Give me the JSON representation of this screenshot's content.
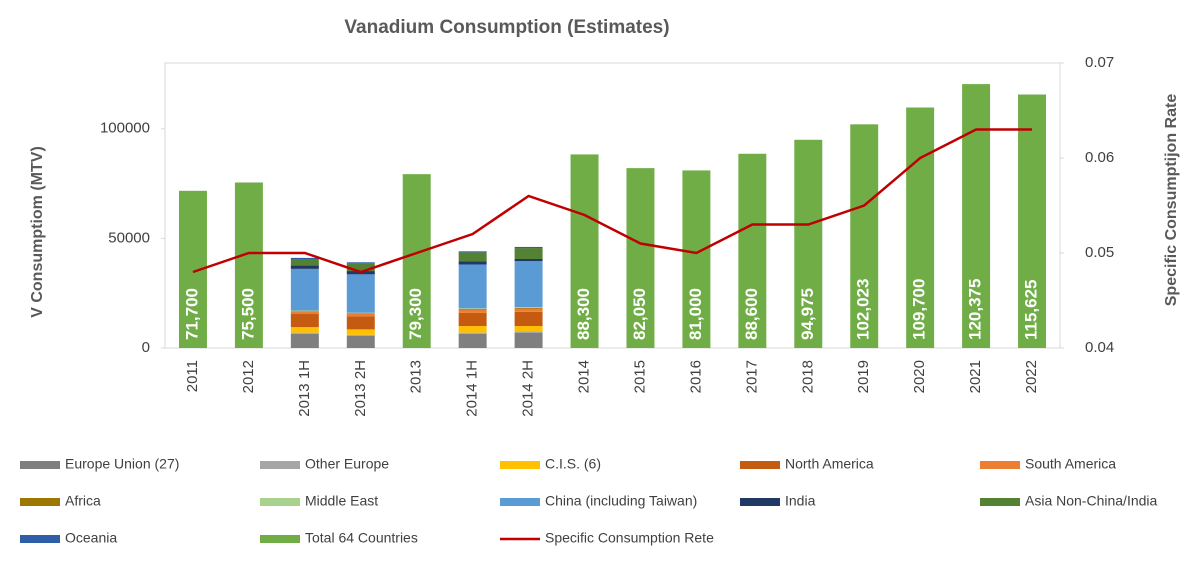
{
  "chart_data": {
    "type": "bar",
    "title": "Vanadium Consumption (Estimates)",
    "y_label": "V Consumptiom (MTV)",
    "y2_label": "Specific Consumptijon Rate",
    "categories": [
      "2011",
      "2012",
      "2013 1H",
      "2013 2H",
      "2013",
      "2014 1H",
      "2014 2H",
      "2014",
      "2015",
      "2016",
      "2017",
      "2018",
      "2019",
      "2020",
      "2021",
      "2022"
    ],
    "ylim": [
      0,
      130000
    ],
    "yticks": [
      0,
      50000,
      100000
    ],
    "y2lim": [
      0.04,
      0.07
    ],
    "y2ticks": [
      0.04,
      0.05,
      0.06,
      0.07
    ],
    "stacked": true,
    "series": [
      {
        "name": "Europe Union (27)",
        "color": "#7f7f7f",
        "values": [
          null,
          null,
          6500,
          5500,
          null,
          6500,
          7000,
          null,
          null,
          null,
          null,
          null,
          null,
          null,
          null,
          null
        ]
      },
      {
        "name": "Other Europe",
        "color": "#a5a5a5",
        "values": [
          null,
          null,
          500,
          500,
          null,
          500,
          500,
          null,
          null,
          null,
          null,
          null,
          null,
          null,
          null,
          null
        ]
      },
      {
        "name": "C.I.S. (6)",
        "color": "#ffc000",
        "values": [
          null,
          null,
          2500,
          2500,
          null,
          3000,
          2500,
          null,
          null,
          null,
          null,
          null,
          null,
          null,
          null,
          null
        ]
      },
      {
        "name": "North America",
        "color": "#c55a11",
        "values": [
          null,
          null,
          6000,
          6000,
          null,
          6000,
          6500,
          null,
          null,
          null,
          null,
          null,
          null,
          null,
          null,
          null
        ]
      },
      {
        "name": "South America",
        "color": "#ed7d31",
        "values": [
          null,
          null,
          1000,
          1000,
          null,
          1500,
          1500,
          null,
          null,
          null,
          null,
          null,
          null,
          null,
          null,
          null
        ]
      },
      {
        "name": "Africa",
        "color": "#9c7800",
        "values": [
          null,
          null,
          300,
          300,
          null,
          300,
          300,
          null,
          null,
          null,
          null,
          null,
          null,
          null,
          null,
          null
        ]
      },
      {
        "name": "Middle East",
        "color": "#a9d18e",
        "values": [
          null,
          null,
          300,
          300,
          null,
          300,
          300,
          null,
          null,
          null,
          null,
          null,
          null,
          null,
          null,
          null
        ]
      },
      {
        "name": "China (including Taiwan)",
        "color": "#5b9bd5",
        "values": [
          null,
          null,
          19000,
          17500,
          null,
          20000,
          21000,
          null,
          null,
          null,
          null,
          null,
          null,
          null,
          null,
          null
        ]
      },
      {
        "name": "India",
        "color": "#1f3864",
        "values": [
          null,
          null,
          1500,
          1500,
          null,
          1500,
          1000,
          null,
          null,
          null,
          null,
          null,
          null,
          null,
          null,
          null
        ]
      },
      {
        "name": "Asia Non-China/India",
        "color": "#548235",
        "values": [
          null,
          null,
          3000,
          3500,
          null,
          4000,
          5000,
          null,
          null,
          null,
          null,
          null,
          null,
          null,
          null,
          null
        ]
      },
      {
        "name": "Oceania",
        "color": "#2e5ea8",
        "values": [
          null,
          null,
          500,
          500,
          null,
          500,
          500,
          null,
          null,
          null,
          null,
          null,
          null,
          null,
          null,
          null
        ]
      },
      {
        "name": "Total 64 Countries",
        "color": "#70ad47",
        "values": [
          71700,
          75500,
          null,
          null,
          79300,
          null,
          null,
          88300,
          82050,
          81000,
          88600,
          94975,
          102023,
          109700,
          120375,
          115625
        ],
        "value_labels": [
          "71,700",
          "75,500",
          null,
          null,
          "79,300",
          null,
          null,
          "88,300",
          "82,050",
          "81,000",
          "88,600",
          "94,975",
          "102,023",
          "109,700",
          "120,375",
          "115,625"
        ]
      },
      {
        "name": "Specific Consumption Rete",
        "color": "#c00000",
        "type": "line",
        "axis": "y2",
        "values": [
          0.048,
          0.05,
          0.05,
          0.048,
          0.05,
          0.052,
          0.056,
          0.054,
          0.051,
          0.05,
          0.053,
          0.053,
          0.055,
          0.06,
          0.063,
          0.063
        ]
      }
    ]
  }
}
